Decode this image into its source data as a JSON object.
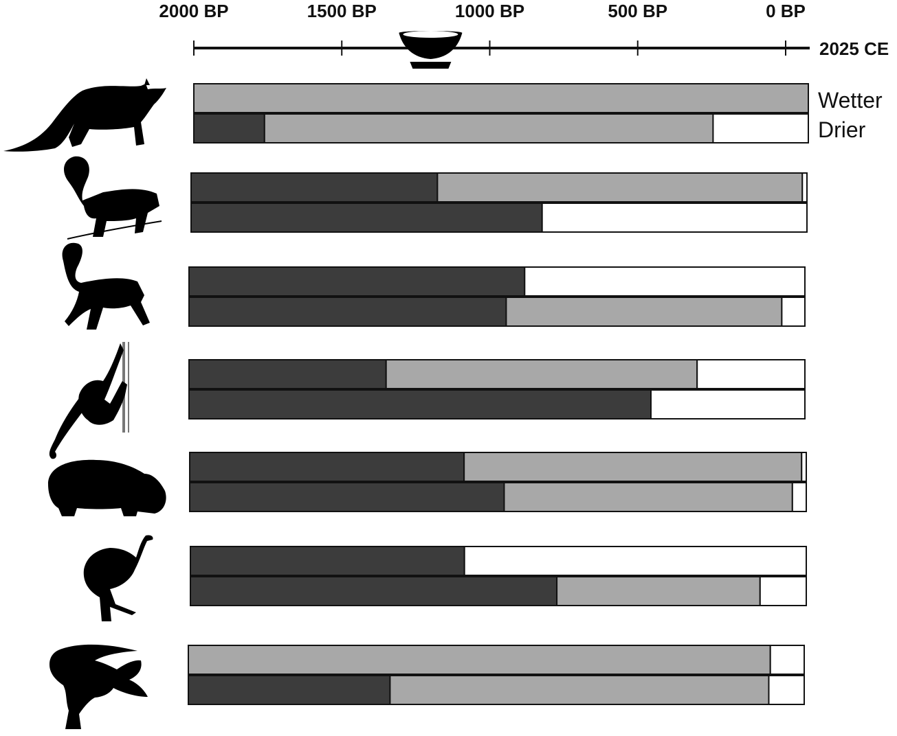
{
  "chart_data": {
    "type": "bar",
    "orientation": "horizontal",
    "xlim": [
      2000,
      0
    ],
    "x_unit": "BP",
    "tick_labels": [
      "2000 BP",
      "1500 BP",
      "1000 BP",
      "500 BP",
      "0 BP"
    ],
    "tick_values": [
      2000,
      1500,
      1000,
      500,
      0
    ],
    "end_label": "2025 CE",
    "legend": [
      "Wetter",
      "Drier"
    ],
    "colors": {
      "dark": "#3c3c3c",
      "grey": "#a8a8a8",
      "empty": "#ffffff",
      "stroke": "#111111"
    },
    "animals": [
      {
        "icon": "fossa-icon",
        "wetter": [
          {
            "shade": "grey",
            "from": 2000,
            "to": 0
          }
        ],
        "drier": [
          {
            "shade": "dark",
            "from": 2000,
            "to": 1770
          },
          {
            "shade": "grey",
            "from": 1770,
            "to": 310
          },
          {
            "shade": "empty",
            "from": 310,
            "to": 0
          }
        ]
      },
      {
        "icon": "ring-tailed-lemur-icon",
        "wetter": [
          {
            "shade": "dark",
            "from": 2000,
            "to": 1200
          },
          {
            "shade": "grey",
            "from": 1200,
            "to": 15
          },
          {
            "shade": "empty",
            "from": 15,
            "to": 0
          }
        ],
        "drier": [
          {
            "shade": "dark",
            "from": 2000,
            "to": 860
          },
          {
            "shade": "empty",
            "from": 860,
            "to": 0
          }
        ]
      },
      {
        "icon": "lemur-icon",
        "wetter": [
          {
            "shade": "dark",
            "from": 2000,
            "to": 910
          },
          {
            "shade": "empty",
            "from": 910,
            "to": 0
          }
        ],
        "drier": [
          {
            "shade": "dark",
            "from": 2000,
            "to": 970
          },
          {
            "shade": "grey",
            "from": 970,
            "to": 75
          },
          {
            "shade": "empty",
            "from": 75,
            "to": 0
          }
        ]
      },
      {
        "icon": "sloth-lemur-icon",
        "wetter": [
          {
            "shade": "dark",
            "from": 2000,
            "to": 1360
          },
          {
            "shade": "grey",
            "from": 1360,
            "to": 350
          },
          {
            "shade": "empty",
            "from": 350,
            "to": 0
          }
        ],
        "drier": [
          {
            "shade": "dark",
            "from": 2000,
            "to": 500
          },
          {
            "shade": "empty",
            "from": 500,
            "to": 0
          }
        ]
      },
      {
        "icon": "hippopotamus-icon",
        "wetter": [
          {
            "shade": "dark",
            "from": 2000,
            "to": 1110
          },
          {
            "shade": "grey",
            "from": 1110,
            "to": 15
          },
          {
            "shade": "empty",
            "from": 15,
            "to": 0
          }
        ],
        "drier": [
          {
            "shade": "dark",
            "from": 2000,
            "to": 980
          },
          {
            "shade": "grey",
            "from": 980,
            "to": 45
          },
          {
            "shade": "empty",
            "from": 45,
            "to": 0
          }
        ]
      },
      {
        "icon": "elephant-bird-icon",
        "wetter": [
          {
            "shade": "dark",
            "from": 2000,
            "to": 1110
          },
          {
            "shade": "empty",
            "from": 1110,
            "to": 0
          }
        ],
        "drier": [
          {
            "shade": "dark",
            "from": 2000,
            "to": 810
          },
          {
            "shade": "grey",
            "from": 810,
            "to": 150
          },
          {
            "shade": "empty",
            "from": 150,
            "to": 0
          }
        ]
      },
      {
        "icon": "crocodile-icon",
        "wetter": [
          {
            "shade": "grey",
            "from": 2000,
            "to": 110
          },
          {
            "shade": "empty",
            "from": 110,
            "to": 0
          }
        ],
        "drier": [
          {
            "shade": "dark",
            "from": 2000,
            "to": 1345
          },
          {
            "shade": "grey",
            "from": 1345,
            "to": 115
          },
          {
            "shade": "empty",
            "from": 115,
            "to": 0
          }
        ]
      }
    ],
    "marker": {
      "icon": "bowl-icon",
      "at": 1200
    }
  }
}
